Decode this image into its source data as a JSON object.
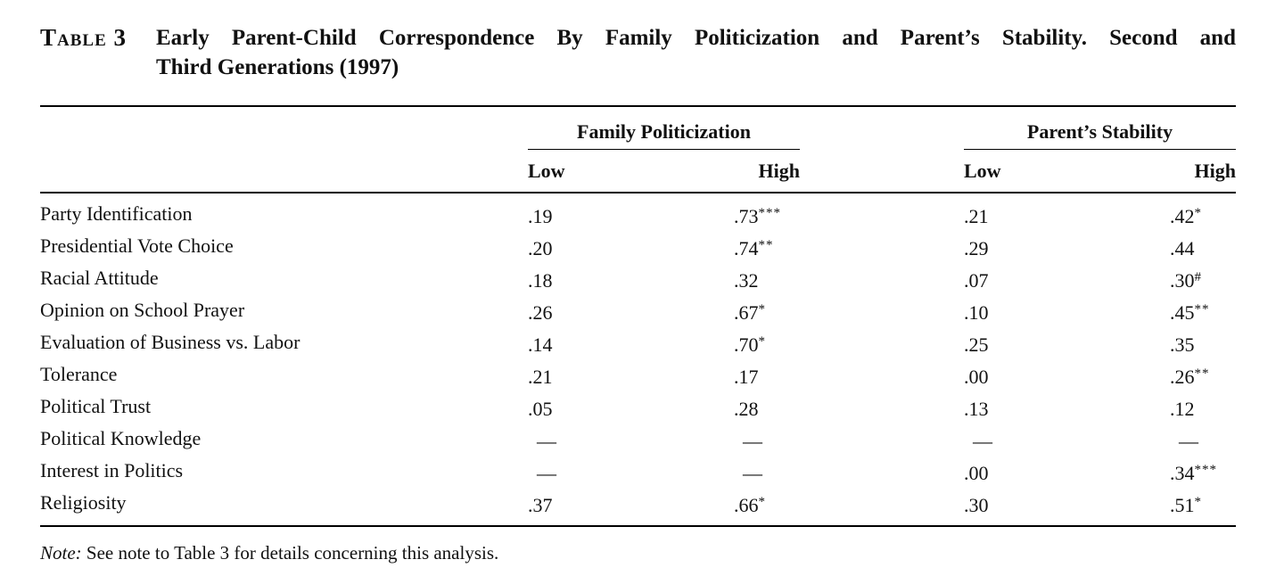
{
  "title": {
    "label": "Table 3",
    "lines": [
      "Early Parent-Child Correspondence By Family Politicization and Parent’s Stability. Second and",
      "Third Generations (1997)"
    ]
  },
  "table": {
    "groups": [
      {
        "label": "Family Politicization",
        "columns": [
          "Low",
          "High"
        ]
      },
      {
        "label": "Parent’s Stability",
        "columns": [
          "Low",
          "High"
        ]
      }
    ],
    "rows": [
      {
        "label": "Party Identification",
        "values": [
          {
            "v": ".19",
            "s": ""
          },
          {
            "v": ".73",
            "s": "***"
          },
          {
            "v": ".21",
            "s": ""
          },
          {
            "v": ".42",
            "s": "*"
          }
        ]
      },
      {
        "label": "Presidential Vote Choice",
        "values": [
          {
            "v": ".20",
            "s": ""
          },
          {
            "v": ".74",
            "s": "**"
          },
          {
            "v": ".29",
            "s": ""
          },
          {
            "v": ".44",
            "s": ""
          }
        ]
      },
      {
        "label": "Racial Attitude",
        "values": [
          {
            "v": ".18",
            "s": ""
          },
          {
            "v": ".32",
            "s": ""
          },
          {
            "v": ".07",
            "s": ""
          },
          {
            "v": ".30",
            "s": "#"
          }
        ]
      },
      {
        "label": "Opinion on School Prayer",
        "values": [
          {
            "v": ".26",
            "s": ""
          },
          {
            "v": ".67",
            "s": "*"
          },
          {
            "v": ".10",
            "s": ""
          },
          {
            "v": ".45",
            "s": "**"
          }
        ]
      },
      {
        "label": "Evaluation of Business vs. Labor",
        "values": [
          {
            "v": ".14",
            "s": ""
          },
          {
            "v": ".70",
            "s": "*"
          },
          {
            "v": ".25",
            "s": ""
          },
          {
            "v": ".35",
            "s": ""
          }
        ]
      },
      {
        "label": "Tolerance",
        "values": [
          {
            "v": ".21",
            "s": ""
          },
          {
            "v": ".17",
            "s": ""
          },
          {
            "v": ".00",
            "s": ""
          },
          {
            "v": ".26",
            "s": "**"
          }
        ]
      },
      {
        "label": "Political Trust",
        "values": [
          {
            "v": ".05",
            "s": ""
          },
          {
            "v": ".28",
            "s": ""
          },
          {
            "v": ".13",
            "s": ""
          },
          {
            "v": ".12",
            "s": ""
          }
        ]
      },
      {
        "label": "Political Knowledge",
        "values": [
          {
            "v": "—",
            "s": ""
          },
          {
            "v": "—",
            "s": ""
          },
          {
            "v": "—",
            "s": ""
          },
          {
            "v": "—",
            "s": ""
          }
        ]
      },
      {
        "label": "Interest in Politics",
        "values": [
          {
            "v": "—",
            "s": ""
          },
          {
            "v": "—",
            "s": ""
          },
          {
            "v": ".00",
            "s": ""
          },
          {
            "v": ".34",
            "s": "***"
          }
        ]
      },
      {
        "label": "Religiosity",
        "values": [
          {
            "v": ".37",
            "s": ""
          },
          {
            "v": ".66",
            "s": "*"
          },
          {
            "v": ".30",
            "s": ""
          },
          {
            "v": ".51",
            "s": "*"
          }
        ]
      }
    ]
  },
  "note": {
    "label": "Note:",
    "text": " See note to Table 3 for details concerning this analysis."
  },
  "colors": {
    "text": "#111111",
    "background": "#ffffff",
    "rule": "#000000"
  }
}
